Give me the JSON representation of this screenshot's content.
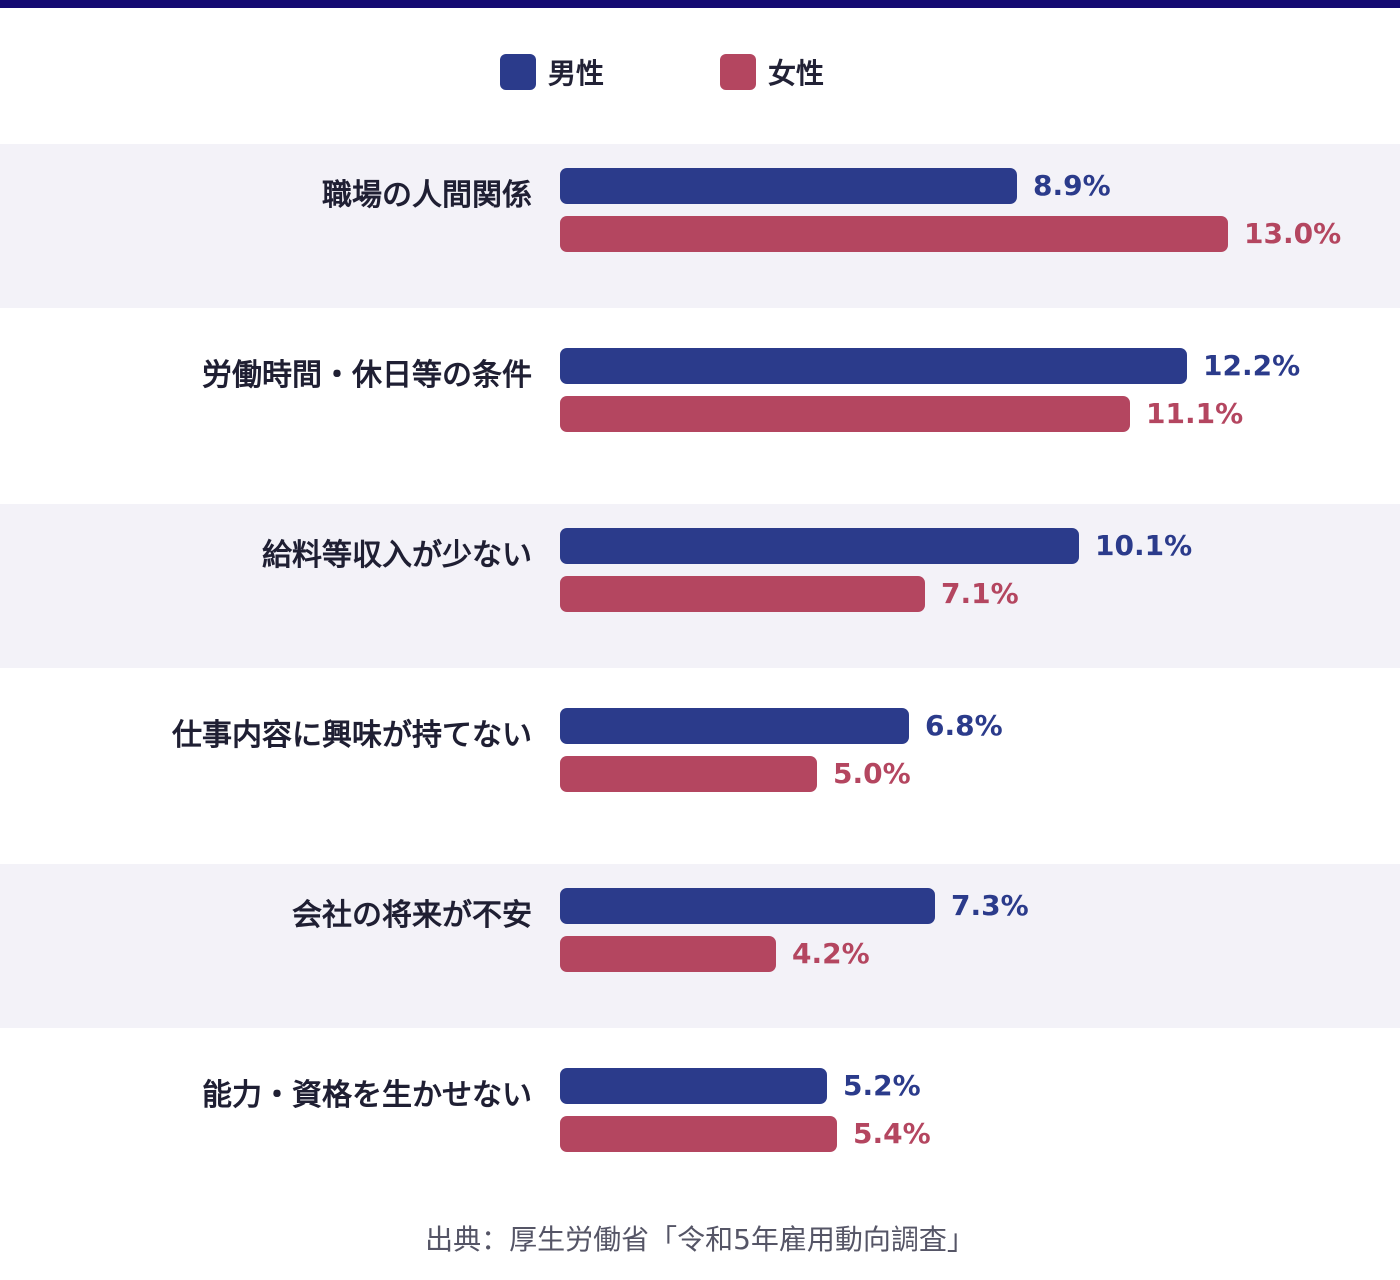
{
  "colors": {
    "top_rule": "#140a72",
    "male": "#2b3b8b",
    "female": "#b44660",
    "band": "#f3f2f8"
  },
  "legend": {
    "male": "男性",
    "female": "女性"
  },
  "chart_data": {
    "type": "bar",
    "orientation": "horizontal",
    "title": "",
    "xlabel": "",
    "ylabel": "",
    "unit": "%",
    "xlim": [
      0,
      13.0
    ],
    "grid": false,
    "legend_placement": "top-center",
    "categories": [
      "職場の人間関係",
      "労働時間・休日等の条件",
      "給料等収入が少ない",
      "仕事内容に興味が持てない",
      "会社の将来が不安",
      "能力・資格を生かせない"
    ],
    "series": [
      {
        "name": "男性",
        "values": [
          8.9,
          12.2,
          10.1,
          6.8,
          7.3,
          5.2
        ],
        "labels": [
          "8.9%",
          "12.2%",
          "10.1%",
          "6.8%",
          "7.3%",
          "5.2%"
        ]
      },
      {
        "name": "女性",
        "values": [
          13.0,
          11.1,
          7.1,
          5.0,
          4.2,
          5.4
        ],
        "labels": [
          "13.0%",
          "11.1%",
          "7.1%",
          "5.0%",
          "4.2%",
          "5.4%"
        ]
      }
    ]
  },
  "source": "出典：厚生労働省「令和5年雇用動向調査」"
}
